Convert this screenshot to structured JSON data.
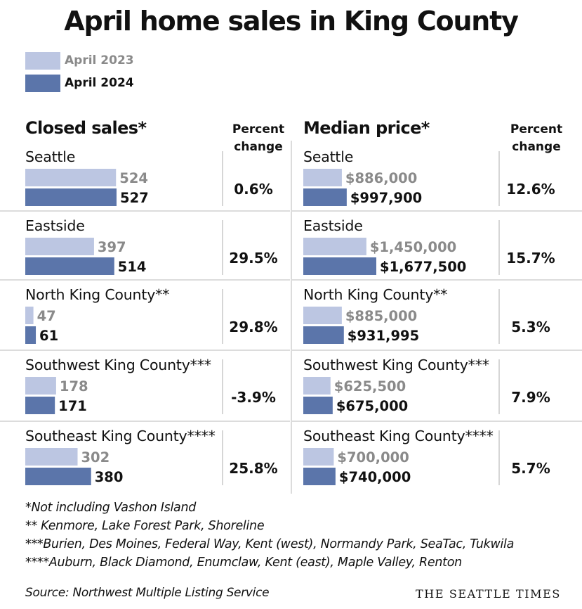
{
  "title": "April home sales in King County",
  "legend": [
    {
      "label": "April 2023",
      "color": "#bcc6e2",
      "text_color": "#8a8a8a"
    },
    {
      "label": "April 2024",
      "color": "#5b75aa",
      "text_color": "#111111"
    }
  ],
  "chart_data": [
    {
      "type": "bar",
      "title": "Closed sales*",
      "change_label": "Percent change",
      "categories": [
        "Seattle",
        "Eastside",
        "North King County**",
        "Southwest King County***",
        "Southeast King County****"
      ],
      "series": [
        {
          "name": "April 2023",
          "values": [
            524,
            397,
            47,
            178,
            302
          ],
          "labels": [
            "524",
            "397",
            "47",
            "178",
            "302"
          ]
        },
        {
          "name": "April 2024",
          "values": [
            527,
            514,
            61,
            171,
            380
          ],
          "labels": [
            "527",
            "514",
            "61",
            "171",
            "380"
          ]
        }
      ],
      "percent_change": [
        "0.6%",
        "29.5%",
        "29.8%",
        "-3.9%",
        "25.8%"
      ]
    },
    {
      "type": "bar",
      "title": "Median price*",
      "change_label": "Percent change",
      "categories": [
        "Seattle",
        "Eastside",
        "North King County**",
        "Southwest King County***",
        "Southeast King County****"
      ],
      "series": [
        {
          "name": "April 2023",
          "values": [
            886000,
            1450000,
            885000,
            625500,
            700000
          ],
          "labels": [
            "$886,000",
            "$1,450,000",
            "$885,000",
            "$625,500",
            "$700,000"
          ]
        },
        {
          "name": "April 2024",
          "values": [
            997900,
            1677500,
            931995,
            675000,
            740000
          ],
          "labels": [
            "$997,900",
            "$1,677,500",
            "$931,995",
            "$675,000",
            "$740,000"
          ]
        }
      ],
      "percent_change": [
        "12.6%",
        "15.7%",
        "5.3%",
        "7.9%",
        "5.7%"
      ]
    }
  ],
  "footnotes": [
    "*Not including Vashon Island",
    "** Kenmore, Lake Forest Park, Shoreline",
    "***Burien, Des Moines, Federal Way, Kent (west), Normandy Park, SeaTac, Tukwila",
    "****Auburn, Black Diamond, Enumclaw, Kent (east), Maple Valley, Renton"
  ],
  "source": "Source: Northwest Multiple Listing Service",
  "brand": "THE SEATTLE TIMES"
}
